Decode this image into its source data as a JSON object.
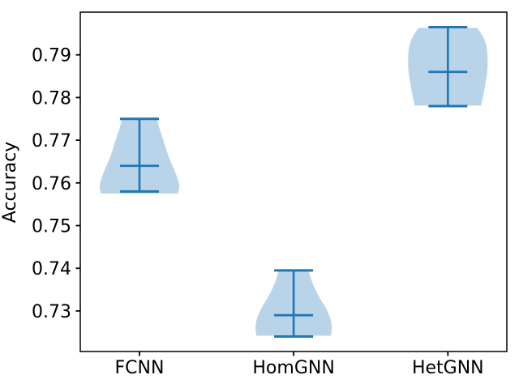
{
  "chart_data": {
    "type": "violin",
    "title": "",
    "xlabel": "",
    "ylabel": "Accuracy",
    "categories": [
      "FCNN",
      "HomGNN",
      "HetGNN"
    ],
    "series": [
      {
        "name": "FCNN",
        "min": 0.758,
        "median": 0.764,
        "max": 0.775,
        "profile": [
          [
            0.7753,
            0.44
          ],
          [
            0.7735,
            0.48
          ],
          [
            0.77,
            0.6
          ],
          [
            0.766,
            0.74
          ],
          [
            0.7625,
            0.9
          ],
          [
            0.76,
            0.99
          ],
          [
            0.7588,
            1.0
          ],
          [
            0.7575,
            0.97
          ]
        ]
      },
      {
        "name": "HomGNN",
        "min": 0.724,
        "median": 0.729,
        "max": 0.7395,
        "profile": [
          [
            0.7396,
            0.38
          ],
          [
            0.738,
            0.42
          ],
          [
            0.7355,
            0.52
          ],
          [
            0.733,
            0.66
          ],
          [
            0.7305,
            0.82
          ],
          [
            0.728,
            0.93
          ],
          [
            0.726,
            0.96
          ],
          [
            0.7242,
            0.94
          ]
        ]
      },
      {
        "name": "HetGNN",
        "min": 0.778,
        "median": 0.786,
        "max": 0.7965,
        "profile": [
          [
            0.7963,
            0.74
          ],
          [
            0.794,
            0.9
          ],
          [
            0.7915,
            0.98
          ],
          [
            0.789,
            1.0
          ],
          [
            0.786,
            0.99
          ],
          [
            0.783,
            0.94
          ],
          [
            0.78,
            0.88
          ],
          [
            0.7781,
            0.83
          ]
        ]
      }
    ],
    "ylim": [
      0.7205,
      0.8
    ],
    "yticks": [
      0.73,
      0.74,
      0.75,
      0.76,
      0.77,
      0.78,
      0.79
    ],
    "ytick_format_decimals": 2,
    "grid": false,
    "legend": null,
    "colors": {
      "fill": "#b9d4e8",
      "line": "#1f77b4",
      "axis": "#000000",
      "text": "#000000"
    }
  }
}
